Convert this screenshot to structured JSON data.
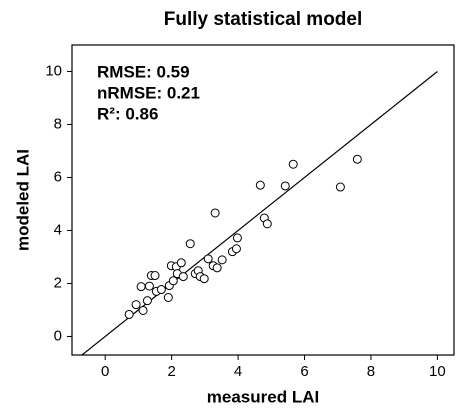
{
  "chart_data": {
    "type": "scatter",
    "title": "Fully statistical model",
    "x_label": "measured LAI",
    "y_label": "modeled LAI",
    "annotations": [
      "RMSE: 0.59",
      "nRMSE: 0.21",
      "R²: 0.86"
    ],
    "x": [
      0.72,
      0.93,
      1.14,
      1.08,
      1.27,
      1.33,
      1.39,
      1.54,
      1.69,
      1.5,
      1.9,
      1.93,
      1.99,
      2.14,
      2.17,
      2.29,
      2.05,
      2.56,
      2.35,
      2.71,
      2.8,
      2.86,
      2.98,
      3.1,
      3.25,
      3.31,
      3.37,
      3.52,
      3.83,
      3.95,
      3.98,
      4.67,
      4.79,
      4.88,
      5.66,
      5.42,
      7.08,
      7.59
    ],
    "y": [
      0.83,
      1.2,
      0.98,
      1.88,
      1.35,
      1.9,
      2.3,
      1.7,
      1.77,
      2.3,
      1.47,
      1.92,
      2.67,
      2.63,
      2.37,
      2.78,
      2.1,
      3.5,
      2.26,
      2.37,
      2.48,
      2.26,
      2.18,
      2.93,
      2.67,
      4.66,
      2.59,
      2.89,
      3.2,
      3.31,
      3.72,
      5.71,
      4.47,
      4.25,
      6.5,
      5.68,
      5.64,
      6.69
    ],
    "reference_line": {
      "x": [
        -1,
        10
      ],
      "y": [
        -1,
        10
      ]
    },
    "xlim": [
      -1,
      10.5
    ],
    "ylim": [
      -0.7,
      11
    ],
    "xticks": [
      0,
      2,
      4,
      6,
      8,
      10
    ],
    "yticks": [
      0,
      2,
      4,
      6,
      8,
      10
    ]
  }
}
